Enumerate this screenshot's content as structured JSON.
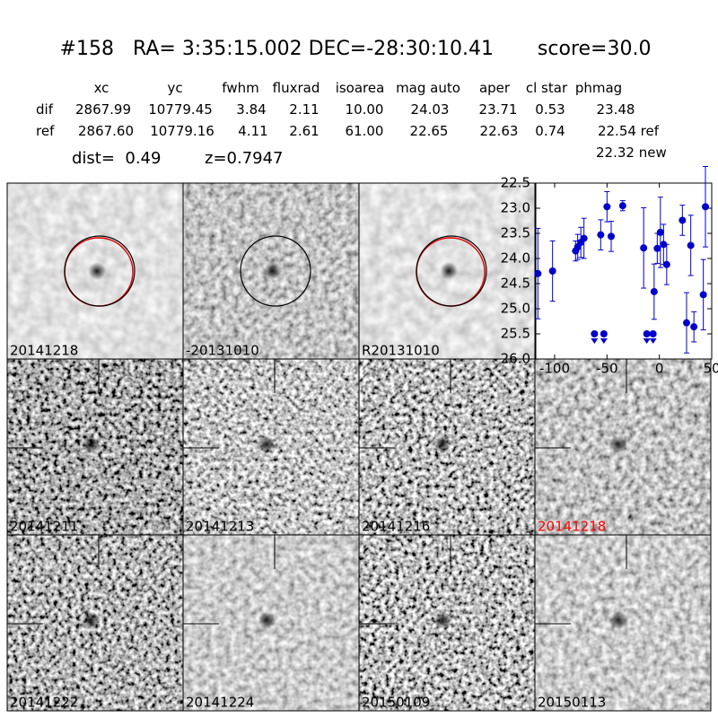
{
  "header": {
    "title": "#158   RA= 3:35:15.002 DEC=-28:30:10.41       score=30.0"
  },
  "table": {
    "columns": [
      "xc",
      "yc",
      "fwhm",
      "fluxrad",
      "isoarea",
      "mag auto",
      "aper",
      "cl star",
      "phmag"
    ],
    "rows": [
      {
        "label": "dif",
        "cells": [
          "2867.99",
          "10779.45",
          "3.84",
          "2.11",
          "10.00",
          "24.03",
          "23.71",
          "0.53",
          "23.48"
        ]
      },
      {
        "label": "ref",
        "cells": [
          "2867.60",
          "10779.16",
          "4.11",
          "2.61",
          "61.00",
          "22.65",
          "22.63",
          "0.74",
          "22.54 ref"
        ]
      }
    ],
    "extra": "22.32 new"
  },
  "info": {
    "dist": "dist=  0.49",
    "z": "z=0.7947"
  },
  "panels": [
    "20141218",
    "-20131010",
    "R20131010",
    "20141211",
    "20141213",
    "20141216",
    "20141218",
    "20141222",
    "20141224",
    "20150109",
    "20150113"
  ],
  "chart_data": {
    "type": "scatter",
    "xlim": [
      -118,
      50
    ],
    "xticks": [
      -100,
      -50,
      0,
      50
    ],
    "ylim": [
      26,
      22.5
    ],
    "yticks": [
      22.5,
      {
        "value": 23,
        "label": "23.0"
      },
      23.5,
      {
        "value": 24,
        "label": "24.0"
      },
      24.5,
      {
        "value": 25,
        "label": "25.0"
      },
      25.5,
      {
        "value": 26,
        "label": "26.0"
      }
    ],
    "series": [
      {
        "color": "#0000cc",
        "x": [
          -116,
          -102,
          -80,
          -78,
          -75,
          -72,
          -56,
          -50,
          -46,
          -35,
          -15,
          -5,
          -2,
          1,
          4,
          7,
          22,
          26,
          30,
          33,
          42,
          44
        ],
        "values": [
          24.3,
          24.25,
          23.85,
          23.77,
          23.68,
          23.6,
          23.53,
          22.97,
          23.56,
          22.95,
          23.79,
          24.66,
          23.8,
          23.48,
          23.72,
          24.12,
          23.24,
          25.28,
          23.74,
          25.36,
          24.72,
          22.97
        ],
        "errors": [
          0.9,
          0.6,
          0.2,
          0.25,
          0.3,
          0.4,
          0.3,
          0.3,
          0.3,
          0.1,
          0.8,
          0.55,
          0.3,
          0.7,
          0.4,
          0.4,
          0.3,
          0.6,
          0.6,
          0.3,
          0.7,
          0.8
        ]
      },
      {
        "color": "#0000cc",
        "upper_limit": true,
        "x": [
          -62,
          -53,
          -12,
          -6
        ],
        "values": [
          25.5,
          25.5,
          25.5,
          25.5
        ]
      }
    ]
  }
}
